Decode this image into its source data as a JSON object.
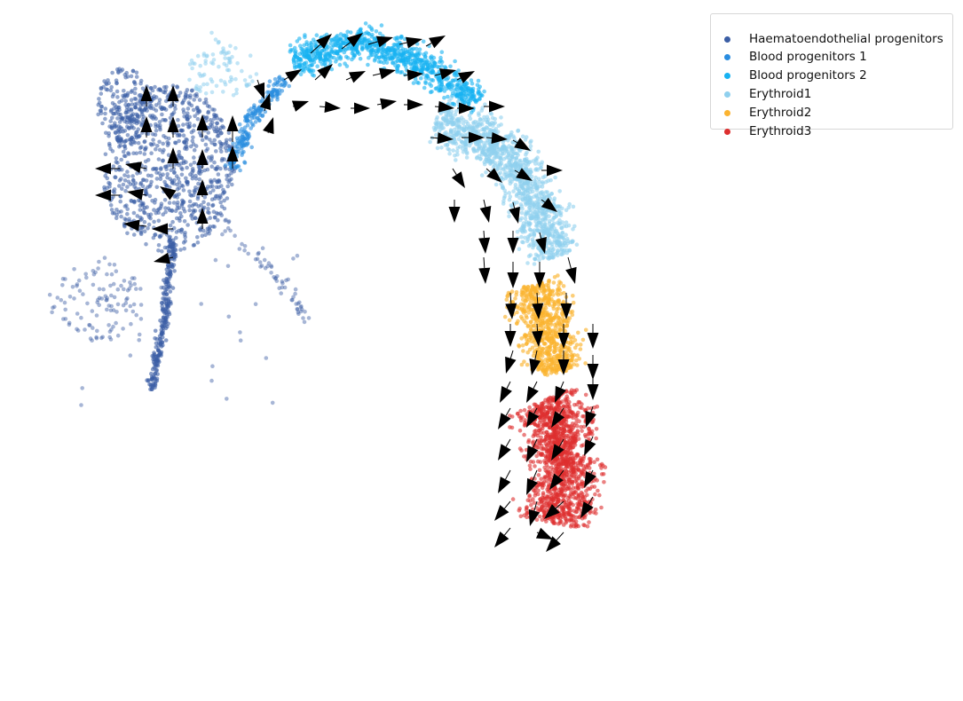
{
  "chart_data": {
    "type": "scatter",
    "title": "",
    "xlabel": "",
    "ylabel": "",
    "axes_visible": false,
    "grid": false,
    "legend_position": "top-right",
    "overlay": "velocity-arrows",
    "arrow_color": "#000000",
    "legend": [
      {
        "name": "Haematoendothelial progenitors",
        "color": "#3b5ea5"
      },
      {
        "name": "Blood progenitors 1",
        "color": "#2a8de0"
      },
      {
        "name": "Blood progenitors 2",
        "color": "#17b2f2"
      },
      {
        "name": "Erythroid1",
        "color": "#8fd0ee"
      },
      {
        "name": "Erythroid2",
        "color": "#fbb330"
      },
      {
        "name": "Erythroid3",
        "color": "#dd2f2f"
      }
    ]
  }
}
